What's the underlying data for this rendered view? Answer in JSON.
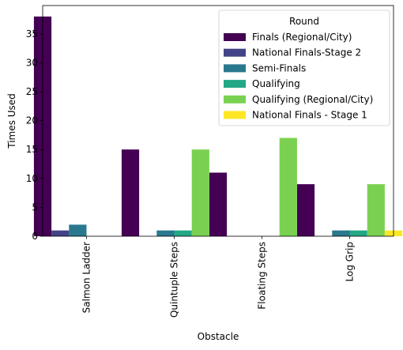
{
  "chart_data": {
    "type": "bar",
    "xlabel": "Obstacle",
    "ylabel": "Times Used",
    "ylim": [
      0,
      39.9
    ],
    "yticks": [
      0,
      5,
      10,
      15,
      20,
      25,
      30,
      35
    ],
    "categories": [
      "Salmon Ladder",
      "Quintuple Steps",
      "Floating Steps",
      "Log Grip"
    ],
    "legend_title": "Round",
    "legend_position": "top-right",
    "series": [
      {
        "name": "Finals (Regional/City)",
        "color": "#440154",
        "values": [
          38,
          15,
          11,
          9
        ]
      },
      {
        "name": "National Finals-Stage 2",
        "color": "#414487",
        "values": [
          1,
          0,
          0,
          0
        ]
      },
      {
        "name": "Semi-Finals",
        "color": "#2a788e",
        "values": [
          2,
          1,
          0,
          1
        ]
      },
      {
        "name": "Qualifying",
        "color": "#22a884",
        "values": [
          0,
          1,
          0,
          1
        ]
      },
      {
        "name": "Qualifying (Regional/City)",
        "color": "#7ad151",
        "values": [
          0,
          15,
          17,
          9
        ]
      },
      {
        "name": "National Finals - Stage 1",
        "color": "#fde725",
        "values": [
          0,
          0,
          0,
          1
        ]
      }
    ]
  }
}
